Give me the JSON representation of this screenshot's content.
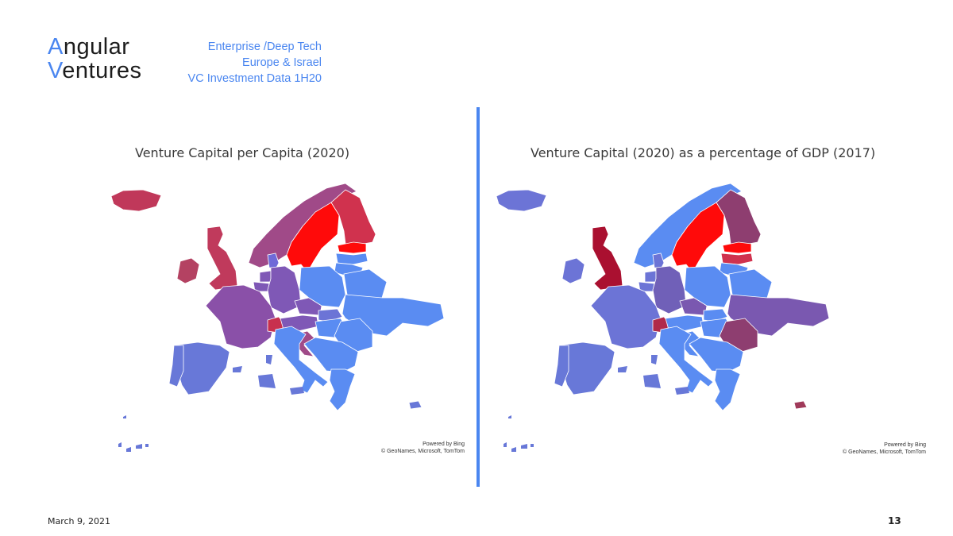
{
  "logo": {
    "line1_accent": "A",
    "line1_rest": "ngular",
    "line2_accent": "V",
    "line2_rest": "entures"
  },
  "header": {
    "line1": "Enterprise /Deep Tech",
    "line2": "Europe & Israel",
    "line3": "VC Investment Data 1H20"
  },
  "maps": [
    {
      "title": "Venture Capital per Capita (2020)",
      "credit_line1": "Powered by Bing",
      "credit_line2": "© GeoNames, Microsoft, TomTom",
      "colors": {
        "iceland": "#c0385a",
        "norway": "#a04a88",
        "sweden": "#ff0a0a",
        "finland": "#d0324e",
        "estonia": "#ff0a0a",
        "latvia": "#5a8cf2",
        "lithuania": "#5a8cf2",
        "denmark": "#6f6ad8",
        "uk": "#c03a5c",
        "ireland": "#b44262",
        "france": "#8a50a8",
        "spain": "#6878d8",
        "portugal": "#6878d8",
        "germany": "#7f58b6",
        "netherlands": "#7f58b6",
        "belgium": "#7f58b6",
        "switzerland": "#c8304e",
        "austria": "#7f58b6",
        "italy": "#5a8cf2",
        "poland": "#5a8cf2",
        "czechia": "#7f58b6",
        "slovakia": "#6c74d6",
        "hungary": "#5a8cf2",
        "ukraine": "#5a8cf2",
        "belarus": "#5a8cf2",
        "romania": "#5a8cf2",
        "balkans": "#5a8cf2",
        "greece": "#5a8cf2",
        "croatia": "#a04a88",
        "cyprus": "#6878d8",
        "islands": "#6878d8"
      }
    },
    {
      "title": "Venture Capital (2020) as a percentage of GDP (2017)",
      "credit_line1": "Powered by Bing",
      "credit_line2": "© GeoNames, Microsoft, TomTom",
      "colors": {
        "iceland": "#6c74d6",
        "norway": "#5a8cf2",
        "sweden": "#ff0a0a",
        "finland": "#8e3e70",
        "estonia": "#ff0a0a",
        "latvia": "#d0324e",
        "lithuania": "#5a8cf2",
        "denmark": "#6c74d6",
        "uk": "#aa1030",
        "ireland": "#6c74d6",
        "france": "#6c74d6",
        "spain": "#6878d8",
        "portugal": "#6878d8",
        "germany": "#7060b8",
        "netherlands": "#6c74d6",
        "belgium": "#6c74d6",
        "switzerland": "#b02a4a",
        "austria": "#5a8cf2",
        "italy": "#5a8cf2",
        "poland": "#5a8cf2",
        "czechia": "#7a58b0",
        "slovakia": "#5a8cf2",
        "hungary": "#5a8cf2",
        "ukraine": "#7a58b0",
        "belarus": "#5a8cf2",
        "romania": "#8e3e70",
        "balkans": "#5a8cf2",
        "greece": "#5a8cf2",
        "croatia": "#5a8cf2",
        "cyprus": "#a03a5a",
        "islands": "#6878d8"
      }
    }
  ],
  "footer": {
    "date": "March 9, 2021",
    "page": "13"
  }
}
